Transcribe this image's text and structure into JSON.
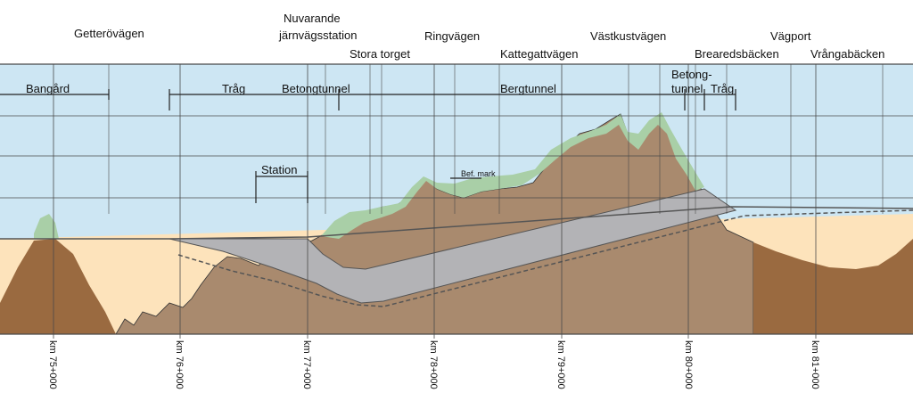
{
  "colors": {
    "sky": "#cde6f3",
    "sand": "#fde3bb",
    "rock": "#a98a6e",
    "rock_dark": "#9a6a40",
    "vegetation": "#a9cfa7",
    "tunnel": "#b3b3b6",
    "grid": "#4a4a4a"
  },
  "top_labels": {
    "getterovagen": "Getterövägen",
    "nuvarande": "Nuvarande",
    "jarnvagsstation": "järnvägsstation",
    "stora_torget": "Stora torget",
    "ringvagen": "Ringvägen",
    "kattegattvagen": "Kattegattvägen",
    "vastkustvagen": "Västkustvägen",
    "brearedsbacken": "Brearedsbäcken",
    "vagport": "Vägport",
    "vrangabacken": "Vrångabäcken"
  },
  "section_labels": {
    "bangard": "Bangård",
    "trag1": "Tråg",
    "betongtunnel1": "Betongtunnel",
    "bergtunnel": "Bergtunnel",
    "betong": "Betong-",
    "tunnel": "tunnel",
    "trag2": "Tråg",
    "station": "Station",
    "bef_mark": "Bef. mark"
  },
  "km_labels": [
    "km 75+000",
    "km 76+000",
    "km 77+000",
    "km 78+000",
    "km 79+000",
    "km 80+000",
    "km 81+000"
  ]
}
